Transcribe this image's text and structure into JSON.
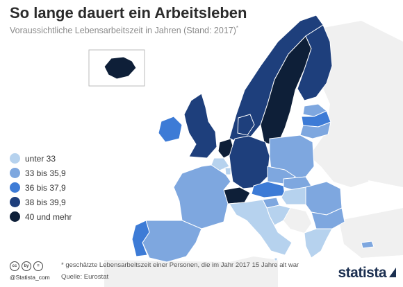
{
  "header": {
    "title": "So lange dauert ein Arbeitsleben",
    "subtitle": "Voraussichtliche Lebensarbeitszeit in Jahren (Stand: 2017)",
    "subtitle_marker": "*"
  },
  "legend": {
    "items": [
      {
        "label": "unter 33",
        "color": "#b6d2ee"
      },
      {
        "label": "33 bis 35,9",
        "color": "#7ea7df"
      },
      {
        "label": "36 bis 37,9",
        "color": "#3d7bd6"
      },
      {
        "label": "38 bis 39,9",
        "color": "#1e3f7c"
      },
      {
        "label": "40 und mehr",
        "color": "#0e1f38"
      }
    ]
  },
  "map": {
    "background_color": "#f0f0f0",
    "border_color": "#ffffff",
    "countries": [
      {
        "id": "iceland",
        "category": 4
      },
      {
        "id": "norway",
        "category": 3
      },
      {
        "id": "sweden",
        "category": 4
      },
      {
        "id": "finland",
        "category": 3
      },
      {
        "id": "estonia",
        "category": 1
      },
      {
        "id": "latvia",
        "category": 2
      },
      {
        "id": "lithuania",
        "category": 1
      },
      {
        "id": "ireland",
        "category": 2
      },
      {
        "id": "united-kingdom",
        "category": 3
      },
      {
        "id": "denmark",
        "category": 3
      },
      {
        "id": "netherlands",
        "category": 4
      },
      {
        "id": "belgium",
        "category": 0
      },
      {
        "id": "luxembourg",
        "category": 0
      },
      {
        "id": "germany",
        "category": 3
      },
      {
        "id": "poland",
        "category": 1
      },
      {
        "id": "czech-republic",
        "category": 1
      },
      {
        "id": "slovakia",
        "category": 1
      },
      {
        "id": "austria",
        "category": 2
      },
      {
        "id": "switzerland",
        "category": 4
      },
      {
        "id": "hungary",
        "category": 0
      },
      {
        "id": "slovenia",
        "category": 1
      },
      {
        "id": "croatia",
        "category": 0
      },
      {
        "id": "romania",
        "category": 1
      },
      {
        "id": "bulgaria",
        "category": 1
      },
      {
        "id": "greece",
        "category": 0
      },
      {
        "id": "italy",
        "category": 0
      },
      {
        "id": "france",
        "category": 1
      },
      {
        "id": "spain",
        "category": 1
      },
      {
        "id": "portugal",
        "category": 2
      },
      {
        "id": "cyprus",
        "category": 1
      },
      {
        "id": "malta",
        "category": 0
      }
    ]
  },
  "footer": {
    "handle": "@Statista_com",
    "note": "* geschätzte Lebensarbeitszeit einer Personen, die im Jahr 2017 15 Jahre alt war",
    "source": "Quelle: Eurostat",
    "brand": "statista",
    "cc_icons": [
      "cc",
      "by",
      "="
    ]
  }
}
